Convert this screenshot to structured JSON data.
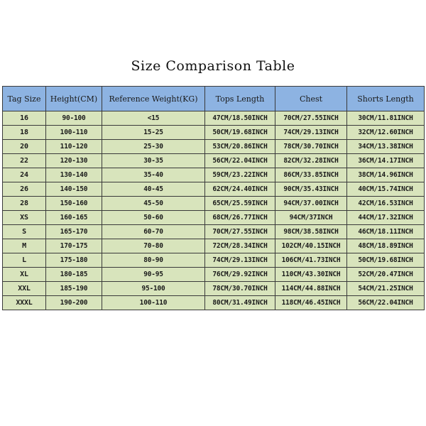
{
  "title": "Size Comparison Table",
  "colors": {
    "header_bg": "#8db3e2",
    "cell_bg": "#d8e4bc",
    "border": "#3a3a3a"
  },
  "table": {
    "headers": [
      "Tag Size",
      "Height(CM)",
      "Reference Weight(KG)",
      "Tops Length",
      "Chest",
      "Shorts Length"
    ],
    "rows": [
      [
        "16",
        "90-100",
        "<15",
        "47CM/18.50INCH",
        "70CM/27.55INCH",
        "30CM/11.81INCH"
      ],
      [
        "18",
        "100-110",
        "15-25",
        "50CM/19.68INCH",
        "74CM/29.13INCH",
        "32CM/12.60INCH"
      ],
      [
        "20",
        "110-120",
        "25-30",
        "53CM/20.86INCH",
        "78CM/30.70INCH",
        "34CM/13.38INCH"
      ],
      [
        "22",
        "120-130",
        "30-35",
        "56CM/22.04INCH",
        "82CM/32.28INCH",
        "36CM/14.17INCH"
      ],
      [
        "24",
        "130-140",
        "35-40",
        "59CM/23.22INCH",
        "86CM/33.85INCH",
        "38CM/14.96INCH"
      ],
      [
        "26",
        "140-150",
        "40-45",
        "62CM/24.40INCH",
        "90CM/35.43INCH",
        "40CM/15.74INCH"
      ],
      [
        "28",
        "150-160",
        "45-50",
        "65CM/25.59INCH",
        "94CM/37.00INCH",
        "42CM/16.53INCH"
      ],
      [
        "XS",
        "160-165",
        "50-60",
        "68CM/26.77INCH",
        "94CM/37INCH",
        "44CM/17.32INCH"
      ],
      [
        "S",
        "165-170",
        "60-70",
        "70CM/27.55INCH",
        "98CM/38.58INCH",
        "46CM/18.11INCH"
      ],
      [
        "M",
        "170-175",
        "70-80",
        "72CM/28.34INCH",
        "102CM/40.15INCH",
        "48CM/18.89INCH"
      ],
      [
        "L",
        "175-180",
        "80-90",
        "74CM/29.13INCH",
        "106CM/41.73INCH",
        "50CM/19.68INCH"
      ],
      [
        "XL",
        "180-185",
        "90-95",
        "76CM/29.92INCH",
        "110CM/43.30INCH",
        "52CM/20.47INCH"
      ],
      [
        "XXL",
        "185-190",
        "95-100",
        "78CM/30.70INCH",
        "114CM/44.88INCH",
        "54CM/21.25INCH"
      ],
      [
        "XXXL",
        "190-200",
        "100-110",
        "80CM/31.49INCH",
        "118CM/46.45INCH",
        "56CM/22.04INCH"
      ]
    ]
  }
}
